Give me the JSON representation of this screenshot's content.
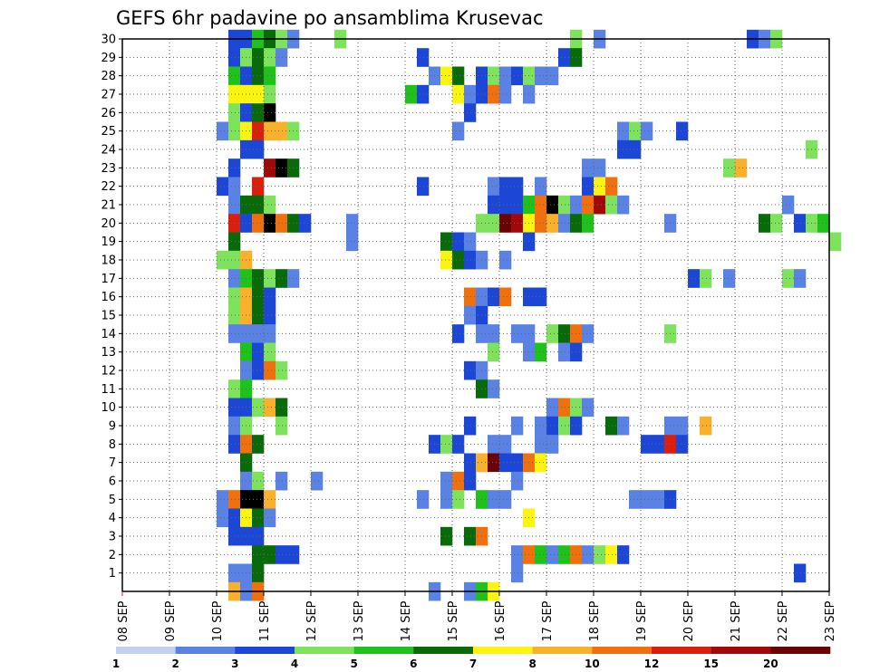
{
  "chart_data": {
    "type": "heatmap",
    "title": "GEFS 6hr padavine po ansamblima Krusevac",
    "xlabel": "",
    "ylabel": "",
    "x_tick_labels": [
      "08 SEP",
      "09 SEP",
      "10 SEP",
      "11 SEP",
      "12 SEP",
      "13 SEP",
      "14 SEP",
      "15 SEP",
      "16 SEP",
      "17 SEP",
      "18 SEP",
      "19 SEP",
      "20 SEP",
      "21 SEP",
      "22 SEP",
      "23 SEP"
    ],
    "x_range_days": [
      0,
      15
    ],
    "y_tick_labels": [
      "1",
      "2",
      "3",
      "4",
      "5",
      "6",
      "7",
      "8",
      "9",
      "10",
      "11",
      "12",
      "13",
      "14",
      "15",
      "16",
      "17",
      "18",
      "19",
      "20",
      "21",
      "22",
      "23",
      "24",
      "25",
      "26",
      "27",
      "28",
      "29",
      "30"
    ],
    "y_range": [
      0,
      30
    ],
    "grid": true,
    "levels": [
      "1",
      "2",
      "3",
      "4",
      "5",
      "6",
      "7",
      "8",
      "10",
      "12",
      "15",
      "20"
    ],
    "colors": [
      "#c2d0f4",
      "#5a82e4",
      "#1c46d6",
      "#7ee25c",
      "#1ec21a",
      "#086a08",
      "#faf410",
      "#f9b12c",
      "#ef700c",
      "#d8200c",
      "#a0080a",
      "#6a0404"
    ],
    "legend_position": "bottom",
    "cells": [
      [
        30,
        9,
        2
      ],
      [
        30,
        10,
        2
      ],
      [
        30,
        11,
        4
      ],
      [
        30,
        12,
        5
      ],
      [
        30,
        13,
        3
      ],
      [
        30,
        14,
        1
      ],
      [
        30,
        18,
        3
      ],
      [
        30,
        38,
        3
      ],
      [
        30,
        40,
        1
      ],
      [
        30,
        53,
        2
      ],
      [
        30,
        54,
        1
      ],
      [
        30,
        55,
        3
      ],
      [
        29,
        9,
        2
      ],
      [
        29,
        10,
        3
      ],
      [
        29,
        11,
        5
      ],
      [
        29,
        12,
        3
      ],
      [
        29,
        13,
        1
      ],
      [
        29,
        25,
        2
      ],
      [
        29,
        37,
        2
      ],
      [
        29,
        38,
        5
      ],
      [
        28,
        9,
        4
      ],
      [
        28,
        10,
        2
      ],
      [
        28,
        11,
        5
      ],
      [
        28,
        12,
        4
      ],
      [
        28,
        26,
        1
      ],
      [
        28,
        27,
        6
      ],
      [
        28,
        28,
        5
      ],
      [
        28,
        30,
        2
      ],
      [
        28,
        31,
        3
      ],
      [
        28,
        32,
        1
      ],
      [
        28,
        33,
        2
      ],
      [
        28,
        34,
        3
      ],
      [
        28,
        35,
        1
      ],
      [
        28,
        36,
        1
      ],
      [
        27,
        9,
        6
      ],
      [
        27,
        10,
        6
      ],
      [
        27,
        11,
        6
      ],
      [
        27,
        12,
        3
      ],
      [
        27,
        24,
        4
      ],
      [
        27,
        25,
        2
      ],
      [
        27,
        28,
        6
      ],
      [
        27,
        29,
        1
      ],
      [
        27,
        30,
        2
      ],
      [
        27,
        31,
        8
      ],
      [
        27,
        32,
        1
      ],
      [
        27,
        34,
        1
      ],
      [
        26,
        9,
        3
      ],
      [
        26,
        10,
        2
      ],
      [
        26,
        11,
        5
      ],
      [
        26,
        12,
        12
      ],
      [
        26,
        29,
        2
      ],
      [
        25,
        8,
        1
      ],
      [
        25,
        9,
        3
      ],
      [
        25,
        10,
        6
      ],
      [
        25,
        11,
        9
      ],
      [
        25,
        12,
        7
      ],
      [
        25,
        13,
        7
      ],
      [
        25,
        14,
        3
      ],
      [
        25,
        28,
        1
      ],
      [
        25,
        42,
        1
      ],
      [
        25,
        43,
        3
      ],
      [
        25,
        44,
        1
      ],
      [
        25,
        47,
        2
      ],
      [
        24,
        10,
        2
      ],
      [
        24,
        11,
        2
      ],
      [
        24,
        42,
        2
      ],
      [
        24,
        43,
        2
      ],
      [
        24,
        58,
        3
      ],
      [
        23,
        9,
        2
      ],
      [
        23,
        12,
        10
      ],
      [
        23,
        13,
        12
      ],
      [
        23,
        14,
        5
      ],
      [
        23,
        39,
        1
      ],
      [
        23,
        40,
        1
      ],
      [
        23,
        51,
        3
      ],
      [
        23,
        52,
        7
      ],
      [
        22,
        8,
        2
      ],
      [
        22,
        9,
        1
      ],
      [
        22,
        11,
        9
      ],
      [
        22,
        25,
        2
      ],
      [
        22,
        31,
        1
      ],
      [
        22,
        32,
        2
      ],
      [
        22,
        33,
        2
      ],
      [
        22,
        35,
        1
      ],
      [
        22,
        39,
        2
      ],
      [
        22,
        40,
        6
      ],
      [
        22,
        41,
        8
      ],
      [
        21,
        9,
        1
      ],
      [
        21,
        10,
        5
      ],
      [
        21,
        11,
        5
      ],
      [
        21,
        12,
        3
      ],
      [
        21,
        31,
        2
      ],
      [
        21,
        32,
        2
      ],
      [
        21,
        33,
        2
      ],
      [
        21,
        34,
        4
      ],
      [
        21,
        35,
        8
      ],
      [
        21,
        36,
        12
      ],
      [
        21,
        37,
        3
      ],
      [
        21,
        38,
        1
      ],
      [
        21,
        39,
        8
      ],
      [
        21,
        40,
        10
      ],
      [
        21,
        41,
        3
      ],
      [
        21,
        42,
        1
      ],
      [
        21,
        56,
        1
      ],
      [
        20,
        9,
        9
      ],
      [
        20,
        10,
        2
      ],
      [
        20,
        11,
        8
      ],
      [
        20,
        12,
        12
      ],
      [
        20,
        13,
        8
      ],
      [
        20,
        14,
        5
      ],
      [
        20,
        15,
        2
      ],
      [
        20,
        19,
        1
      ],
      [
        20,
        30,
        3
      ],
      [
        20,
        31,
        3
      ],
      [
        20,
        32,
        11
      ],
      [
        20,
        33,
        10
      ],
      [
        20,
        34,
        6
      ],
      [
        20,
        35,
        8
      ],
      [
        20,
        36,
        7
      ],
      [
        20,
        37,
        1
      ],
      [
        20,
        38,
        5
      ],
      [
        20,
        39,
        4
      ],
      [
        20,
        46,
        1
      ],
      [
        20,
        54,
        5
      ],
      [
        20,
        55,
        3
      ],
      [
        20,
        57,
        2
      ],
      [
        20,
        58,
        3
      ],
      [
        20,
        59,
        4
      ],
      [
        19,
        9,
        5
      ],
      [
        19,
        19,
        1
      ],
      [
        19,
        27,
        5
      ],
      [
        19,
        28,
        2
      ],
      [
        19,
        29,
        1
      ],
      [
        19,
        34,
        2
      ],
      [
        19,
        60,
        3
      ],
      [
        18,
        8,
        3
      ],
      [
        18,
        9,
        3
      ],
      [
        18,
        10,
        7
      ],
      [
        18,
        27,
        6
      ],
      [
        18,
        28,
        5
      ],
      [
        18,
        29,
        2
      ],
      [
        18,
        30,
        1
      ],
      [
        18,
        32,
        1
      ],
      [
        17,
        9,
        1
      ],
      [
        17,
        10,
        4
      ],
      [
        17,
        11,
        5
      ],
      [
        17,
        12,
        3
      ],
      [
        17,
        13,
        5
      ],
      [
        17,
        14,
        1
      ],
      [
        17,
        48,
        2
      ],
      [
        17,
        49,
        3
      ],
      [
        17,
        51,
        1
      ],
      [
        17,
        56,
        3
      ],
      [
        17,
        57,
        1
      ],
      [
        16,
        9,
        3
      ],
      [
        16,
        10,
        7
      ],
      [
        16,
        11,
        5
      ],
      [
        16,
        12,
        2
      ],
      [
        16,
        29,
        8
      ],
      [
        16,
        30,
        1
      ],
      [
        16,
        31,
        2
      ],
      [
        16,
        32,
        8
      ],
      [
        16,
        34,
        2
      ],
      [
        16,
        35,
        2
      ],
      [
        15,
        9,
        3
      ],
      [
        15,
        10,
        7
      ],
      [
        15,
        11,
        5
      ],
      [
        15,
        12,
        2
      ],
      [
        15,
        29,
        1
      ],
      [
        15,
        30,
        2
      ],
      [
        14,
        9,
        1
      ],
      [
        14,
        10,
        1
      ],
      [
        14,
        11,
        1
      ],
      [
        14,
        12,
        1
      ],
      [
        14,
        28,
        2
      ],
      [
        14,
        30,
        1
      ],
      [
        14,
        31,
        1
      ],
      [
        14,
        33,
        1
      ],
      [
        14,
        34,
        1
      ],
      [
        14,
        36,
        3
      ],
      [
        14,
        37,
        5
      ],
      [
        14,
        38,
        8
      ],
      [
        14,
        39,
        1
      ],
      [
        14,
        46,
        3
      ],
      [
        13,
        10,
        4
      ],
      [
        13,
        11,
        2
      ],
      [
        13,
        12,
        3
      ],
      [
        13,
        31,
        3
      ],
      [
        13,
        34,
        1
      ],
      [
        13,
        35,
        4
      ],
      [
        13,
        37,
        1
      ],
      [
        13,
        38,
        2
      ],
      [
        12,
        10,
        1
      ],
      [
        12,
        11,
        2
      ],
      [
        12,
        12,
        8
      ],
      [
        12,
        13,
        3
      ],
      [
        12,
        29,
        2
      ],
      [
        12,
        30,
        1
      ],
      [
        11,
        9,
        3
      ],
      [
        11,
        10,
        4
      ],
      [
        11,
        30,
        5
      ],
      [
        11,
        31,
        1
      ],
      [
        10,
        9,
        2
      ],
      [
        10,
        10,
        2
      ],
      [
        10,
        11,
        3
      ],
      [
        10,
        12,
        7
      ],
      [
        10,
        13,
        5
      ],
      [
        10,
        36,
        1
      ],
      [
        10,
        37,
        8
      ],
      [
        10,
        38,
        3
      ],
      [
        10,
        39,
        1
      ],
      [
        9,
        9,
        1
      ],
      [
        9,
        10,
        3
      ],
      [
        9,
        13,
        3
      ],
      [
        9,
        29,
        2
      ],
      [
        9,
        33,
        1
      ],
      [
        9,
        35,
        1
      ],
      [
        9,
        36,
        2
      ],
      [
        9,
        37,
        3
      ],
      [
        9,
        38,
        2
      ],
      [
        9,
        41,
        5
      ],
      [
        9,
        42,
        1
      ],
      [
        9,
        46,
        1
      ],
      [
        9,
        47,
        1
      ],
      [
        9,
        49,
        7
      ],
      [
        8,
        9,
        2
      ],
      [
        8,
        10,
        8
      ],
      [
        8,
        11,
        5
      ],
      [
        8,
        26,
        2
      ],
      [
        8,
        27,
        3
      ],
      [
        8,
        28,
        2
      ],
      [
        8,
        31,
        1
      ],
      [
        8,
        32,
        1
      ],
      [
        8,
        35,
        1
      ],
      [
        8,
        36,
        1
      ],
      [
        8,
        44,
        2
      ],
      [
        8,
        45,
        2
      ],
      [
        8,
        46,
        9
      ],
      [
        8,
        47,
        2
      ],
      [
        7,
        10,
        5
      ],
      [
        7,
        29,
        2
      ],
      [
        7,
        30,
        7
      ],
      [
        7,
        31,
        11
      ],
      [
        7,
        32,
        2
      ],
      [
        7,
        33,
        2
      ],
      [
        7,
        34,
        8
      ],
      [
        7,
        35,
        6
      ],
      [
        6,
        10,
        1
      ],
      [
        6,
        11,
        3
      ],
      [
        6,
        13,
        1
      ],
      [
        6,
        16,
        1
      ],
      [
        6,
        27,
        1
      ],
      [
        6,
        28,
        8
      ],
      [
        6,
        29,
        2
      ],
      [
        6,
        33,
        1
      ],
      [
        5,
        8,
        1
      ],
      [
        5,
        9,
        8
      ],
      [
        5,
        10,
        12
      ],
      [
        5,
        11,
        12
      ],
      [
        5,
        12,
        7
      ],
      [
        5,
        25,
        1
      ],
      [
        5,
        27,
        1
      ],
      [
        5,
        28,
        3
      ],
      [
        5,
        30,
        4
      ],
      [
        5,
        31,
        1
      ],
      [
        5,
        32,
        1
      ],
      [
        5,
        43,
        1
      ],
      [
        5,
        44,
        1
      ],
      [
        5,
        45,
        1
      ],
      [
        5,
        46,
        2
      ],
      [
        4,
        8,
        1
      ],
      [
        4,
        9,
        2
      ],
      [
        4,
        10,
        6
      ],
      [
        4,
        11,
        5
      ],
      [
        4,
        12,
        1
      ],
      [
        4,
        34,
        6
      ],
      [
        3,
        9,
        2
      ],
      [
        3,
        10,
        2
      ],
      [
        3,
        11,
        2
      ],
      [
        3,
        27,
        5
      ],
      [
        3,
        29,
        5
      ],
      [
        3,
        30,
        8
      ],
      [
        2,
        11,
        5
      ],
      [
        2,
        12,
        5
      ],
      [
        2,
        13,
        2
      ],
      [
        2,
        14,
        2
      ],
      [
        2,
        33,
        1
      ],
      [
        2,
        34,
        8
      ],
      [
        2,
        35,
        4
      ],
      [
        2,
        36,
        1
      ],
      [
        2,
        37,
        4
      ],
      [
        2,
        38,
        8
      ],
      [
        2,
        39,
        1
      ],
      [
        2,
        40,
        3
      ],
      [
        2,
        41,
        6
      ],
      [
        2,
        42,
        2
      ],
      [
        1,
        9,
        1
      ],
      [
        1,
        10,
        1
      ],
      [
        1,
        11,
        5
      ],
      [
        1,
        33,
        1
      ],
      [
        1,
        57,
        2
      ],
      [
        0,
        9,
        7
      ],
      [
        0,
        10,
        1
      ],
      [
        0,
        11,
        8
      ],
      [
        0,
        26,
        1
      ],
      [
        0,
        29,
        1
      ],
      [
        0,
        30,
        4
      ],
      [
        0,
        31,
        6
      ]
    ]
  }
}
